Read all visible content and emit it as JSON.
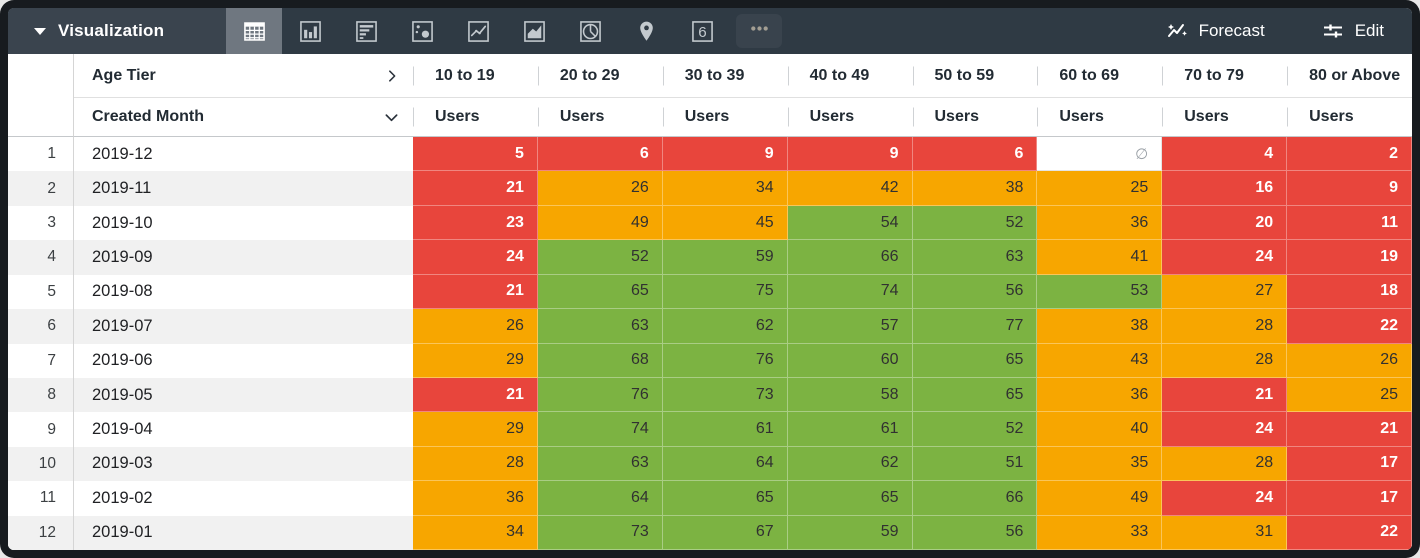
{
  "toolbar": {
    "visualization_label": "Visualization",
    "forecast_label": "Forecast",
    "edit_label": "Edit",
    "icons": [
      {
        "name": "table-chart-icon",
        "selected": true
      },
      {
        "name": "bar-chart-icon",
        "selected": false
      },
      {
        "name": "row-chart-icon",
        "selected": false
      },
      {
        "name": "scatter-chart-icon",
        "selected": false
      },
      {
        "name": "line-chart-icon",
        "selected": false
      },
      {
        "name": "area-chart-icon",
        "selected": false
      },
      {
        "name": "pie-chart-icon",
        "selected": false
      },
      {
        "name": "map-pin-icon",
        "selected": false
      },
      {
        "name": "single-value-icon",
        "selected": false,
        "glyph": "6"
      },
      {
        "name": "more-options-icon",
        "selected": false
      }
    ]
  },
  "table": {
    "pivot_dimension_label": "Age Tier",
    "row_dimension_label": "Created Month",
    "measure_label": "Users",
    "null_symbol": "∅",
    "columns": [
      "10 to 19",
      "20 to 29",
      "30 to 39",
      "40 to 49",
      "50 to 59",
      "60 to 69",
      "70 to 79",
      "80 or Above"
    ],
    "rows": [
      {
        "index": "1",
        "month": "2019-12",
        "cells": [
          {
            "v": "5",
            "c": "red"
          },
          {
            "v": "6",
            "c": "red"
          },
          {
            "v": "9",
            "c": "red"
          },
          {
            "v": "9",
            "c": "red"
          },
          {
            "v": "6",
            "c": "red"
          },
          {
            "v": null,
            "c": "null"
          },
          {
            "v": "4",
            "c": "red"
          },
          {
            "v": "2",
            "c": "red"
          }
        ]
      },
      {
        "index": "2",
        "month": "2019-11",
        "cells": [
          {
            "v": "21",
            "c": "red"
          },
          {
            "v": "26",
            "c": "orange"
          },
          {
            "v": "34",
            "c": "orange"
          },
          {
            "v": "42",
            "c": "orange"
          },
          {
            "v": "38",
            "c": "orange"
          },
          {
            "v": "25",
            "c": "orange"
          },
          {
            "v": "16",
            "c": "red"
          },
          {
            "v": "9",
            "c": "red"
          }
        ]
      },
      {
        "index": "3",
        "month": "2019-10",
        "cells": [
          {
            "v": "23",
            "c": "red"
          },
          {
            "v": "49",
            "c": "orange"
          },
          {
            "v": "45",
            "c": "orange"
          },
          {
            "v": "54",
            "c": "green"
          },
          {
            "v": "52",
            "c": "green"
          },
          {
            "v": "36",
            "c": "orange"
          },
          {
            "v": "20",
            "c": "red"
          },
          {
            "v": "11",
            "c": "red"
          }
        ]
      },
      {
        "index": "4",
        "month": "2019-09",
        "cells": [
          {
            "v": "24",
            "c": "red"
          },
          {
            "v": "52",
            "c": "green"
          },
          {
            "v": "59",
            "c": "green"
          },
          {
            "v": "66",
            "c": "green"
          },
          {
            "v": "63",
            "c": "green"
          },
          {
            "v": "41",
            "c": "orange"
          },
          {
            "v": "24",
            "c": "red"
          },
          {
            "v": "19",
            "c": "red"
          }
        ]
      },
      {
        "index": "5",
        "month": "2019-08",
        "cells": [
          {
            "v": "21",
            "c": "red"
          },
          {
            "v": "65",
            "c": "green"
          },
          {
            "v": "75",
            "c": "green"
          },
          {
            "v": "74",
            "c": "green"
          },
          {
            "v": "56",
            "c": "green"
          },
          {
            "v": "53",
            "c": "green"
          },
          {
            "v": "27",
            "c": "orange"
          },
          {
            "v": "18",
            "c": "red"
          }
        ]
      },
      {
        "index": "6",
        "month": "2019-07",
        "cells": [
          {
            "v": "26",
            "c": "orange"
          },
          {
            "v": "63",
            "c": "green"
          },
          {
            "v": "62",
            "c": "green"
          },
          {
            "v": "57",
            "c": "green"
          },
          {
            "v": "77",
            "c": "green"
          },
          {
            "v": "38",
            "c": "orange"
          },
          {
            "v": "28",
            "c": "orange"
          },
          {
            "v": "22",
            "c": "red"
          }
        ]
      },
      {
        "index": "7",
        "month": "2019-06",
        "cells": [
          {
            "v": "29",
            "c": "orange"
          },
          {
            "v": "68",
            "c": "green"
          },
          {
            "v": "76",
            "c": "green"
          },
          {
            "v": "60",
            "c": "green"
          },
          {
            "v": "65",
            "c": "green"
          },
          {
            "v": "43",
            "c": "orange"
          },
          {
            "v": "28",
            "c": "orange"
          },
          {
            "v": "26",
            "c": "orange"
          }
        ]
      },
      {
        "index": "8",
        "month": "2019-05",
        "cells": [
          {
            "v": "21",
            "c": "red"
          },
          {
            "v": "76",
            "c": "green"
          },
          {
            "v": "73",
            "c": "green"
          },
          {
            "v": "58",
            "c": "green"
          },
          {
            "v": "65",
            "c": "green"
          },
          {
            "v": "36",
            "c": "orange"
          },
          {
            "v": "21",
            "c": "red"
          },
          {
            "v": "25",
            "c": "orange"
          }
        ]
      },
      {
        "index": "9",
        "month": "2019-04",
        "cells": [
          {
            "v": "29",
            "c": "orange"
          },
          {
            "v": "74",
            "c": "green"
          },
          {
            "v": "61",
            "c": "green"
          },
          {
            "v": "61",
            "c": "green"
          },
          {
            "v": "52",
            "c": "green"
          },
          {
            "v": "40",
            "c": "orange"
          },
          {
            "v": "24",
            "c": "red"
          },
          {
            "v": "21",
            "c": "red"
          }
        ]
      },
      {
        "index": "10",
        "month": "2019-03",
        "cells": [
          {
            "v": "28",
            "c": "orange"
          },
          {
            "v": "63",
            "c": "green"
          },
          {
            "v": "64",
            "c": "green"
          },
          {
            "v": "62",
            "c": "green"
          },
          {
            "v": "51",
            "c": "green"
          },
          {
            "v": "35",
            "c": "orange"
          },
          {
            "v": "28",
            "c": "orange"
          },
          {
            "v": "17",
            "c": "red"
          }
        ]
      },
      {
        "index": "11",
        "month": "2019-02",
        "cells": [
          {
            "v": "36",
            "c": "orange"
          },
          {
            "v": "64",
            "c": "green"
          },
          {
            "v": "65",
            "c": "green"
          },
          {
            "v": "65",
            "c": "green"
          },
          {
            "v": "66",
            "c": "green"
          },
          {
            "v": "49",
            "c": "orange"
          },
          {
            "v": "24",
            "c": "red"
          },
          {
            "v": "17",
            "c": "red"
          }
        ]
      },
      {
        "index": "12",
        "month": "2019-01",
        "cells": [
          {
            "v": "34",
            "c": "orange"
          },
          {
            "v": "73",
            "c": "green"
          },
          {
            "v": "67",
            "c": "green"
          },
          {
            "v": "59",
            "c": "green"
          },
          {
            "v": "56",
            "c": "green"
          },
          {
            "v": "33",
            "c": "orange"
          },
          {
            "v": "31",
            "c": "orange"
          },
          {
            "v": "22",
            "c": "red"
          }
        ]
      }
    ]
  },
  "colors": {
    "red": "#e8453c",
    "orange": "#f7a600",
    "green": "#7cb342",
    "toolbar_bg": "#2f3a44",
    "toolbar_left_bg": "#3a444e",
    "selected_icon_bg": "#6f7780",
    "frame": "#171b1f",
    "stripe": "#f1f1f1"
  }
}
